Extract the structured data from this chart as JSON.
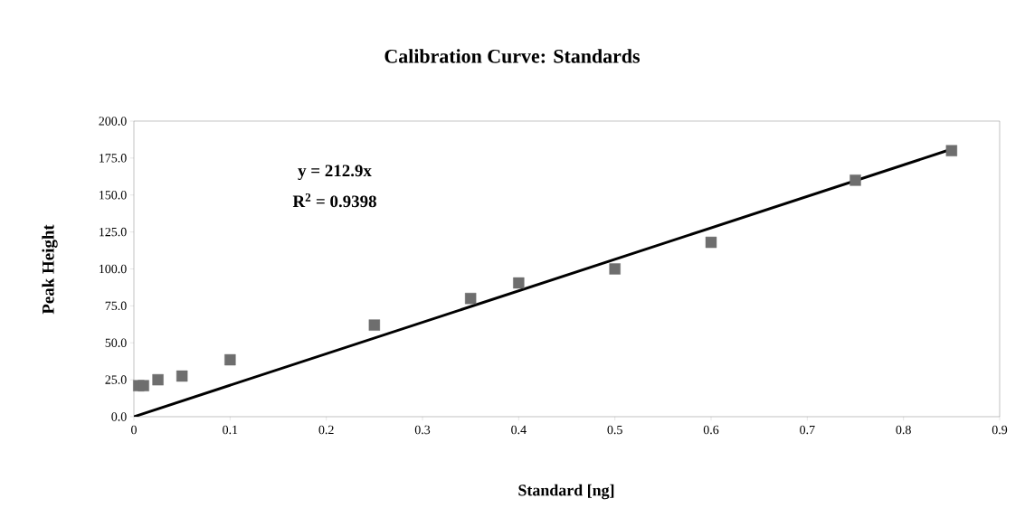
{
  "chart_data": {
    "type": "scatter",
    "title": "Calibration Curve: Standards",
    "xlabel": "Standard [ng]",
    "ylabel": "Peak Height",
    "marker": "square",
    "grid": false,
    "xlim": [
      0,
      0.9
    ],
    "xticks": [
      0,
      0.1,
      0.2,
      0.3,
      0.4,
      0.5,
      0.6,
      0.7,
      0.8,
      0.9
    ],
    "ylim": [
      0,
      200
    ],
    "yticks": [
      {
        "value": 0,
        "label": "0.0"
      },
      {
        "value": 25,
        "label": "25.0"
      },
      {
        "value": 50,
        "label": "50.0"
      },
      {
        "value": 75,
        "label": "75.0"
      },
      {
        "value": 100,
        "label": "100.0"
      },
      {
        "value": 125,
        "label": "125.0"
      },
      {
        "value": 150,
        "label": "150.0"
      },
      {
        "value": 175,
        "label": "175.0"
      },
      {
        "value": 200,
        "label": "200.0"
      }
    ],
    "series": [
      {
        "color": "#6e6e6e",
        "x": [
          0.005,
          0.01,
          0.025,
          0.05,
          0.1,
          0.25,
          0.35,
          0.4,
          0.5,
          0.6,
          0.75,
          0.85
        ],
        "values": [
          21,
          21,
          25,
          27.5,
          38.5,
          62,
          80,
          90.5,
          100,
          118,
          160,
          180
        ]
      },
      {
        "type": "line",
        "color": "#000000",
        "marker": "none",
        "line_style": "solid",
        "x": [
          0,
          0.85
        ],
        "values": [
          0,
          181
        ]
      }
    ],
    "annotations": [
      "y = 212.9x",
      "R$^{2}$ = 0.9398"
    ]
  }
}
